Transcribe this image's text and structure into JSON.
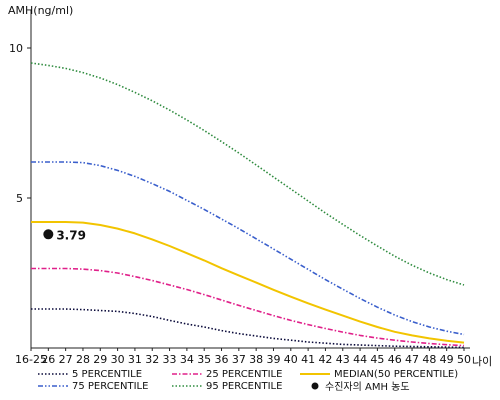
{
  "chart_data": {
    "type": "line",
    "ylabel": "AMH(ng/ml)",
    "xlabel": "나이",
    "ylim": [
      0,
      11
    ],
    "y_ticks": [
      5,
      10
    ],
    "x_tick_labels": [
      "16-25",
      "26",
      "27",
      "28",
      "29",
      "30",
      "31",
      "32",
      "33",
      "34",
      "35",
      "36",
      "37",
      "38",
      "39",
      "40",
      "41",
      "42",
      "43",
      "44",
      "45",
      "46",
      "47",
      "48",
      "49",
      "50"
    ],
    "grid": false,
    "legend_position": "bottom",
    "series": [
      {
        "name": "5 PERCENTILE",
        "color": "#0a0a3a",
        "dash": "dotted",
        "values": [
          1.3,
          1.3,
          1.3,
          1.28,
          1.25,
          1.22,
          1.15,
          1.05,
          0.92,
          0.8,
          0.7,
          0.58,
          0.48,
          0.4,
          0.32,
          0.26,
          0.2,
          0.16,
          0.12,
          0.1,
          0.08,
          0.06,
          0.05,
          0.04,
          0.03,
          0.02
        ]
      },
      {
        "name": "25 PERCENTILE",
        "color": "#e0208a",
        "dash": "dash-dot",
        "values": [
          2.65,
          2.65,
          2.65,
          2.63,
          2.58,
          2.5,
          2.38,
          2.25,
          2.1,
          1.95,
          1.78,
          1.6,
          1.42,
          1.25,
          1.08,
          0.92,
          0.78,
          0.65,
          0.53,
          0.42,
          0.33,
          0.26,
          0.2,
          0.15,
          0.11,
          0.08
        ]
      },
      {
        "name": "MEDIAN(50 PERCENTILE)",
        "color": "#f2c400",
        "dash": "solid",
        "values": [
          4.2,
          4.2,
          4.2,
          4.18,
          4.1,
          3.98,
          3.82,
          3.62,
          3.4,
          3.16,
          2.92,
          2.66,
          2.42,
          2.18,
          1.94,
          1.71,
          1.49,
          1.28,
          1.08,
          0.88,
          0.7,
          0.54,
          0.42,
          0.32,
          0.24,
          0.18
        ]
      },
      {
        "name": "75 PERCENTILE",
        "color": "#3a5fcc",
        "dash": "dash-dot-dot",
        "values": [
          6.2,
          6.2,
          6.2,
          6.18,
          6.08,
          5.92,
          5.72,
          5.48,
          5.22,
          4.92,
          4.62,
          4.3,
          3.98,
          3.64,
          3.3,
          2.96,
          2.62,
          2.28,
          1.96,
          1.65,
          1.36,
          1.1,
          0.88,
          0.7,
          0.56,
          0.45
        ]
      },
      {
        "name": "95 PERCENTILE",
        "color": "#2e8b3e",
        "dash": "dotted",
        "values": [
          9.5,
          9.42,
          9.32,
          9.18,
          9.0,
          8.78,
          8.52,
          8.24,
          7.93,
          7.6,
          7.25,
          6.88,
          6.5,
          6.1,
          5.7,
          5.3,
          4.9,
          4.5,
          4.12,
          3.75,
          3.4,
          3.06,
          2.76,
          2.5,
          2.28,
          2.1
        ]
      }
    ],
    "marker": {
      "label": "3.79",
      "x_label": "26",
      "value": 3.79,
      "legend": "수진자의 AMH 농도"
    }
  }
}
